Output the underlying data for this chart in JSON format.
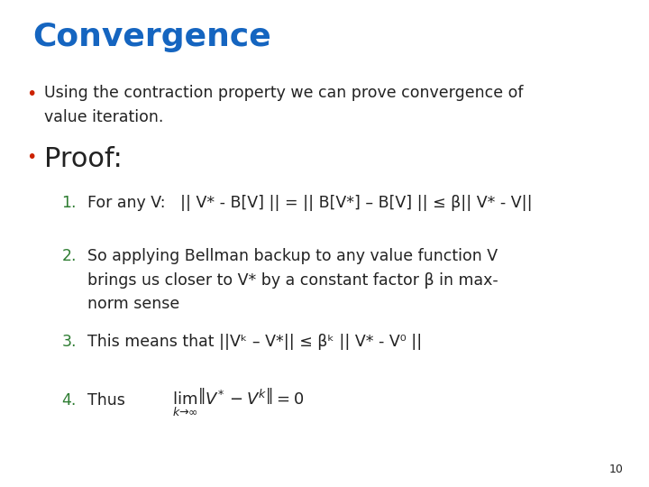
{
  "title": "Convergence",
  "title_color": "#1565C0",
  "title_fontsize": 26,
  "background_color": "#ffffff",
  "bullet1_text": "Using the contraction property we can prove convergence of\nvalue iteration.",
  "bullet2_text": "Proof:",
  "bullet2_fontsize": 22,
  "bullet_color": "#cc2200",
  "bullet_fontsize": 14,
  "item1_number": "1.",
  "item1_text": "For any V:   || V* - B[V] || = || B[V*] – B[V] || ≤ β|| V* - V||",
  "item2_number": "2.",
  "item2_text": "So applying Bellman backup to any value function V\nbrings us closer to V* by a constant factor β in max-\nnorm sense",
  "item3_number": "3.",
  "item3_text": "This means that ||Vᵏ – V*|| ≤ βᵏ || V* - V⁰ ||",
  "item4_number": "4.",
  "item4_text": "Thus",
  "number_color": "#2e7d32",
  "text_color": "#222222",
  "body_fontsize": 12.5,
  "math_fontsize": 13,
  "page_number": "10",
  "page_fontsize": 9
}
